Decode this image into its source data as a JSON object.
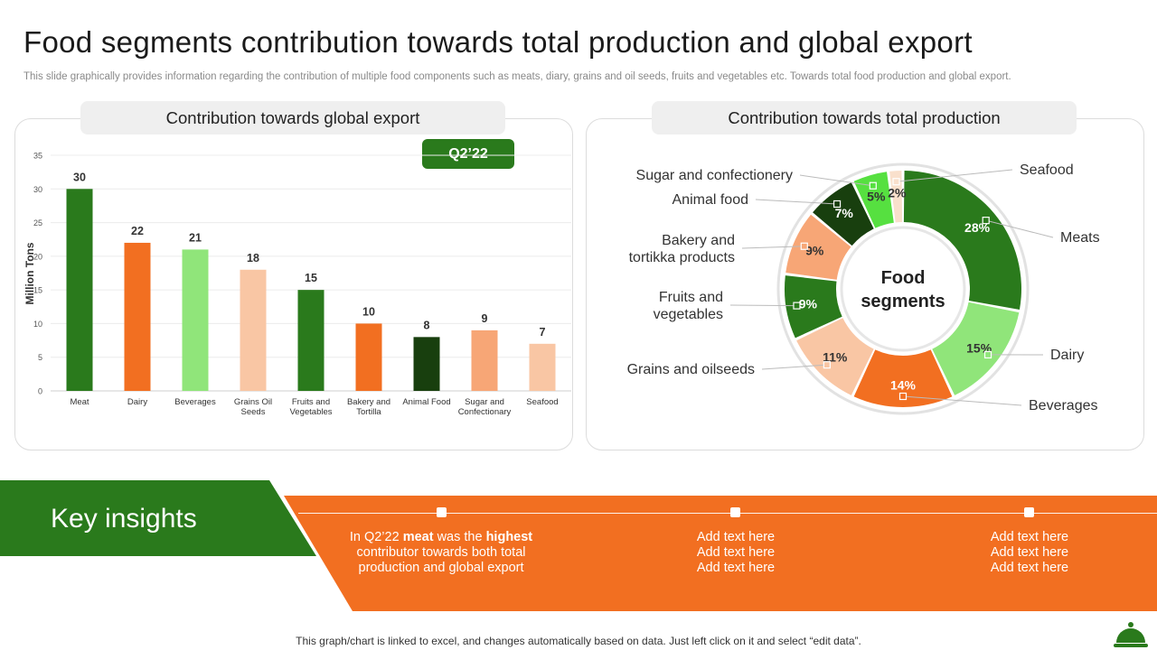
{
  "page": {
    "title": "Food segments contribution towards total production and global export",
    "subtitle": "This slide graphically provides information regarding the contribution of multiple food components such as meats, diary, grains and oil seeds, fruits and vegetables etc. Towards total food production and global export.",
    "footer": "This graph/chart is linked to excel,  and changes automatically based on data. Just left click on it and select “edit data”."
  },
  "bar_panel": {
    "heading": "Contribution towards global export",
    "badge": "Q2’22"
  },
  "donut_panel": {
    "heading": "Contribution towards total production",
    "center_line1": "Food",
    "center_line2": "segments"
  },
  "insights": {
    "title": "Key insights",
    "item1": {
      "p1": "In Q2’22 ",
      "p2": "meat",
      "p3": " was the ",
      "p4": "highest",
      "p5": "contributor towards both total",
      "p6": "production and global export"
    },
    "item2": {
      "l1": "Add text here",
      "l2": "Add text here",
      "l3": "Add text here"
    },
    "item3": {
      "l1": "Add text here",
      "l2": "Add text here",
      "l3": "Add text here"
    }
  },
  "chart_data": [
    {
      "type": "bar",
      "title": "Contribution towards global export",
      "ylabel": "Million Tons",
      "ylim": [
        0,
        35
      ],
      "yticks": [
        0,
        5,
        10,
        15,
        20,
        25,
        30,
        35
      ],
      "categories": [
        [
          "Meat"
        ],
        [
          "Dairy"
        ],
        [
          "Beverages"
        ],
        [
          "Grains Oil",
          "Seeds"
        ],
        [
          "Fruits and",
          "Vegetables"
        ],
        [
          "Bakery and",
          "Tortilla"
        ],
        [
          "Animal Food"
        ],
        [
          "Sugar and",
          "Confectionary"
        ],
        [
          "Seafood"
        ]
      ],
      "values": [
        30,
        22,
        21,
        18,
        15,
        10,
        8,
        9,
        7
      ],
      "colors": [
        "#2a7a1c",
        "#f26f21",
        "#90e57a",
        "#f9c6a4",
        "#2a7a1c",
        "#f26f21",
        "#183f0e",
        "#f7a676",
        "#f9c6a4"
      ],
      "grid": true
    },
    {
      "type": "pie",
      "title": "Contribution towards total production",
      "slices": [
        {
          "label": "Meats",
          "value": 28,
          "pct": "28%",
          "color": "#2a7a1c",
          "lines": [
            "Meats"
          ]
        },
        {
          "label": "Dairy",
          "value": 15,
          "pct": "15%",
          "color": "#90e57a",
          "lines": [
            "Dairy"
          ]
        },
        {
          "label": "Beverages",
          "value": 14,
          "pct": "14%",
          "color": "#f26f21",
          "lines": [
            "Beverages"
          ]
        },
        {
          "label": "Grains and oilseeds",
          "value": 11,
          "pct": "11%",
          "color": "#f9c6a4",
          "lines": [
            "Grains and oilseeds"
          ]
        },
        {
          "label": "Fruits and vegetables",
          "value": 9,
          "pct": "9%",
          "color": "#2a7a1c",
          "lines": [
            "Fruits and",
            "vegetables"
          ]
        },
        {
          "label": "Bakery and tortikka products",
          "value": 9,
          "pct": "9%",
          "color": "#f7a676",
          "lines": [
            "Bakery and",
            "tortikka products"
          ]
        },
        {
          "label": "Animal food",
          "value": 7,
          "pct": "7%",
          "color": "#183f0e",
          "lines": [
            "Animal food"
          ]
        },
        {
          "label": "Sugar and confectionery",
          "value": 5,
          "pct": "5%",
          "color": "#56e040",
          "lines": [
            "Sugar and confectionery"
          ]
        },
        {
          "label": "Seafood",
          "value": 2,
          "pct": "2%",
          "color": "#f9e0cc",
          "lines": [
            "Seafood"
          ]
        }
      ]
    }
  ]
}
